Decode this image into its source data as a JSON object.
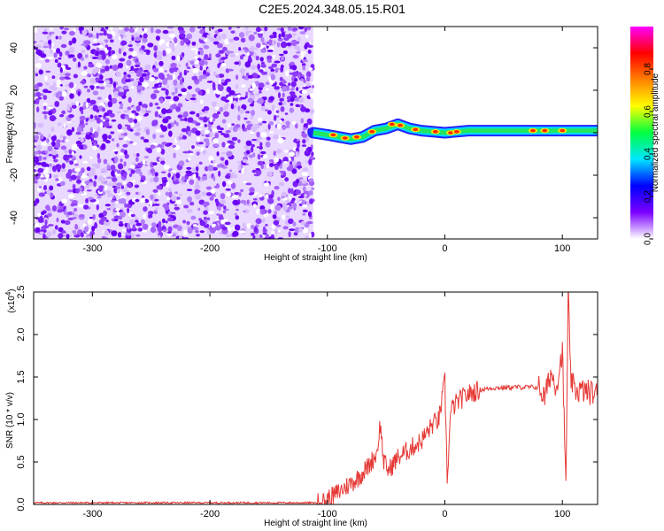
{
  "title": "C2E5.2024.348.05.15.R01",
  "chart_data": [
    {
      "type": "heatmap",
      "xlabel": "Height of straight line (km)",
      "ylabel": "Frequency (Hz)",
      "xlim": [
        -350,
        130
      ],
      "ylim": [
        -50,
        50
      ],
      "xticks": [
        "-300",
        "-200",
        "-100",
        "0",
        "100"
      ],
      "yticks": [
        "-40",
        "-20",
        "0",
        "20",
        "40"
      ],
      "colorbar": {
        "label": "Normalized spectral amplitude",
        "range": [
          0,
          1
        ],
        "ticks": [
          "0.0",
          "0.2",
          "0.4",
          "0.6",
          "0.8"
        ],
        "colors": [
          "#ffffff",
          "#7b00ff",
          "#0000ff",
          "#00e6ff",
          "#00ff40",
          "#ffff00",
          "#ff8000",
          "#ff0000",
          "#ff00ff"
        ]
      },
      "noise_region_x": [
        -350,
        -112
      ],
      "signal_track": {
        "x": [
          -112,
          -100,
          -90,
          -80,
          -70,
          -60,
          -50,
          -40,
          -30,
          -20,
          -10,
          0,
          10,
          20,
          40,
          60,
          80,
          100,
          130
        ],
        "freq": [
          0,
          -1,
          -2,
          -3,
          -2,
          1,
          2,
          4,
          2,
          1,
          0.5,
          0,
          0.5,
          1,
          1,
          1,
          1,
          1,
          1
        ]
      }
    },
    {
      "type": "line",
      "xlabel": "Height of straight line (km)",
      "ylabel": "SNR (10 * v/v)",
      "yscale_label": "(x10",
      "yscale_exp": "4",
      "yscale_close": ")",
      "xlim": [
        -350,
        130
      ],
      "ylim": [
        0,
        2.5
      ],
      "xticks": [
        "-300",
        "-200",
        "-100",
        "0",
        "100"
      ],
      "yticks": [
        "0.0",
        "0.5",
        "1.0",
        "1.5",
        "2.0",
        "2.5"
      ],
      "color": "#e53935",
      "series": [
        {
          "x": [
            -350,
            -200,
            -105,
            -95,
            -85,
            -75,
            -65,
            -58,
            -55,
            -52,
            -48,
            -40,
            -30,
            -20,
            -10,
            -5,
            0,
            2,
            5,
            10,
            20,
            30,
            40,
            60,
            80,
            85,
            90,
            95,
            100,
            103,
            105,
            107,
            110,
            120,
            130
          ],
          "values": [
            0.02,
            0.02,
            0.02,
            0.1,
            0.2,
            0.3,
            0.45,
            0.6,
            0.95,
            0.5,
            0.4,
            0.55,
            0.65,
            0.75,
            0.95,
            1.0,
            1.45,
            0.3,
            1.1,
            1.2,
            1.3,
            1.35,
            1.37,
            1.38,
            1.38,
            1.25,
            1.55,
            1.4,
            1.8,
            0.2,
            2.5,
            1.5,
            1.35,
            1.33,
            1.3
          ]
        }
      ]
    }
  ]
}
